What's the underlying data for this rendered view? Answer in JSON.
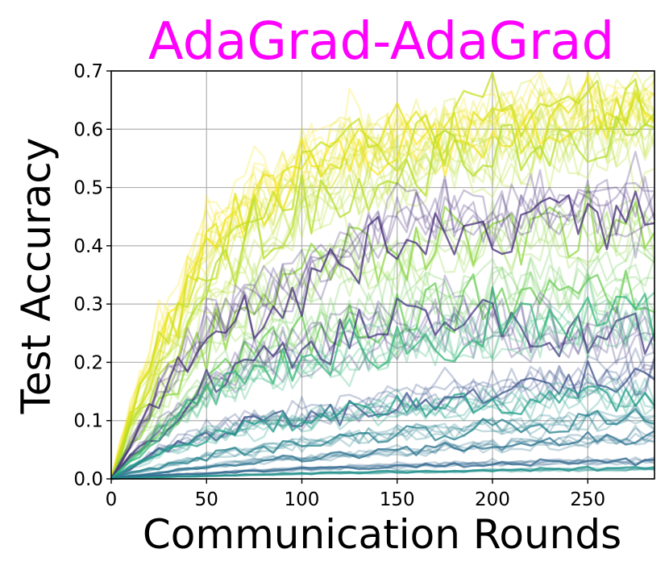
{
  "chart_data": {
    "type": "line",
    "title": "AdaGrad-AdaGrad",
    "title_color": "#ff00ff",
    "xlabel": "Communication Rounds",
    "ylabel": "Test Accuracy",
    "xlim": [
      0,
      285
    ],
    "ylim": [
      0,
      0.7
    ],
    "xticks": [
      "0",
      "50",
      "100",
      "150",
      "200",
      "250"
    ],
    "yticks": [
      "0.0",
      "0.1",
      "0.2",
      "0.3",
      "0.4",
      "0.5",
      "0.6",
      "0.7"
    ],
    "grid": true,
    "legend": "none",
    "colormap": "viridis",
    "series": [
      {
        "color": "#fde725",
        "x": [
          0,
          10,
          25,
          50,
          75,
          100,
          125,
          150,
          175,
          200,
          225,
          250,
          285
        ],
        "y": [
          0,
          0.12,
          0.24,
          0.42,
          0.5,
          0.55,
          0.58,
          0.6,
          0.61,
          0.62,
          0.63,
          0.65,
          0.65
        ]
      },
      {
        "color": "#e4e419",
        "x": [
          0,
          10,
          25,
          50,
          75,
          100,
          125,
          150,
          175,
          200,
          225,
          250,
          285
        ],
        "y": [
          0,
          0.11,
          0.22,
          0.4,
          0.48,
          0.53,
          0.57,
          0.59,
          0.6,
          0.61,
          0.62,
          0.63,
          0.64
        ]
      },
      {
        "color": "#c8e020",
        "x": [
          0,
          10,
          25,
          50,
          75,
          100,
          125,
          150,
          175,
          200,
          225,
          250,
          285
        ],
        "y": [
          0,
          0.1,
          0.2,
          0.36,
          0.45,
          0.5,
          0.55,
          0.57,
          0.59,
          0.6,
          0.61,
          0.62,
          0.63
        ]
      },
      {
        "color": "#b5de2b",
        "x": [
          0,
          10,
          25,
          50,
          75,
          100,
          125,
          150,
          175,
          200,
          225,
          250,
          285
        ],
        "y": [
          0,
          0.08,
          0.16,
          0.3,
          0.38,
          0.44,
          0.48,
          0.5,
          0.52,
          0.53,
          0.54,
          0.55,
          0.56
        ]
      },
      {
        "color": "#90d743",
        "x": [
          0,
          10,
          25,
          50,
          75,
          100,
          125,
          150,
          175,
          200,
          225,
          250,
          285
        ],
        "y": [
          0,
          0.06,
          0.12,
          0.24,
          0.3,
          0.34,
          0.37,
          0.38,
          0.39,
          0.4,
          0.41,
          0.42,
          0.42
        ]
      },
      {
        "color": "#6ece58",
        "x": [
          0,
          10,
          25,
          50,
          75,
          100,
          125,
          150,
          175,
          200,
          225,
          250,
          285
        ],
        "y": [
          0,
          0.04,
          0.08,
          0.16,
          0.22,
          0.26,
          0.28,
          0.3,
          0.31,
          0.32,
          0.33,
          0.34,
          0.35
        ]
      },
      {
        "color": "#472d7b",
        "x": [
          0,
          10,
          25,
          50,
          75,
          100,
          125,
          150,
          175,
          200,
          225,
          250,
          285
        ],
        "y": [
          0,
          0.06,
          0.14,
          0.26,
          0.3,
          0.33,
          0.38,
          0.42,
          0.44,
          0.42,
          0.46,
          0.44,
          0.45
        ]
      },
      {
        "color": "#443983",
        "x": [
          0,
          10,
          25,
          50,
          75,
          100,
          125,
          150,
          175,
          200,
          225,
          250,
          285
        ],
        "y": [
          0,
          0.04,
          0.08,
          0.16,
          0.2,
          0.22,
          0.24,
          0.25,
          0.26,
          0.26,
          0.25,
          0.24,
          0.24
        ]
      },
      {
        "color": "#35b779",
        "x": [
          0,
          10,
          25,
          50,
          75,
          100,
          125,
          150,
          175,
          200,
          225,
          250,
          285
        ],
        "y": [
          0,
          0.03,
          0.07,
          0.14,
          0.17,
          0.19,
          0.21,
          0.22,
          0.23,
          0.24,
          0.25,
          0.26,
          0.27
        ]
      },
      {
        "color": "#3b528b",
        "x": [
          0,
          10,
          25,
          50,
          75,
          100,
          125,
          150,
          175,
          200,
          225,
          250,
          285
        ],
        "y": [
          0,
          0.02,
          0.05,
          0.08,
          0.1,
          0.11,
          0.12,
          0.13,
          0.14,
          0.15,
          0.16,
          0.17,
          0.18
        ]
      },
      {
        "color": "#1f9e89",
        "x": [
          0,
          10,
          25,
          50,
          75,
          100,
          125,
          150,
          175,
          200,
          225,
          250,
          285
        ],
        "y": [
          0,
          0.02,
          0.04,
          0.07,
          0.09,
          0.1,
          0.11,
          0.12,
          0.12,
          0.13,
          0.13,
          0.14,
          0.14
        ]
      },
      {
        "color": "#26828e",
        "x": [
          0,
          10,
          25,
          50,
          75,
          100,
          125,
          150,
          175,
          200,
          225,
          250,
          285
        ],
        "y": [
          0,
          0.01,
          0.02,
          0.04,
          0.05,
          0.06,
          0.07,
          0.08,
          0.08,
          0.09,
          0.09,
          0.1,
          0.1
        ]
      },
      {
        "color": "#2c728e",
        "x": [
          0,
          10,
          25,
          50,
          75,
          100,
          125,
          150,
          175,
          200,
          225,
          250,
          285
        ],
        "y": [
          0,
          0.005,
          0.01,
          0.02,
          0.03,
          0.035,
          0.04,
          0.045,
          0.05,
          0.055,
          0.06,
          0.065,
          0.07
        ]
      },
      {
        "color": "#31688e",
        "x": [
          0,
          10,
          25,
          50,
          75,
          100,
          125,
          150,
          175,
          200,
          225,
          250,
          285
        ],
        "y": [
          0,
          0.003,
          0.006,
          0.01,
          0.014,
          0.017,
          0.02,
          0.022,
          0.024,
          0.026,
          0.028,
          0.03,
          0.032
        ]
      },
      {
        "color": "#21918c",
        "x": [
          0,
          10,
          25,
          50,
          75,
          100,
          125,
          150,
          175,
          200,
          225,
          250,
          285
        ],
        "y": [
          0,
          0.002,
          0.003,
          0.005,
          0.007,
          0.009,
          0.01,
          0.012,
          0.013,
          0.014,
          0.015,
          0.016,
          0.017
        ]
      }
    ]
  }
}
